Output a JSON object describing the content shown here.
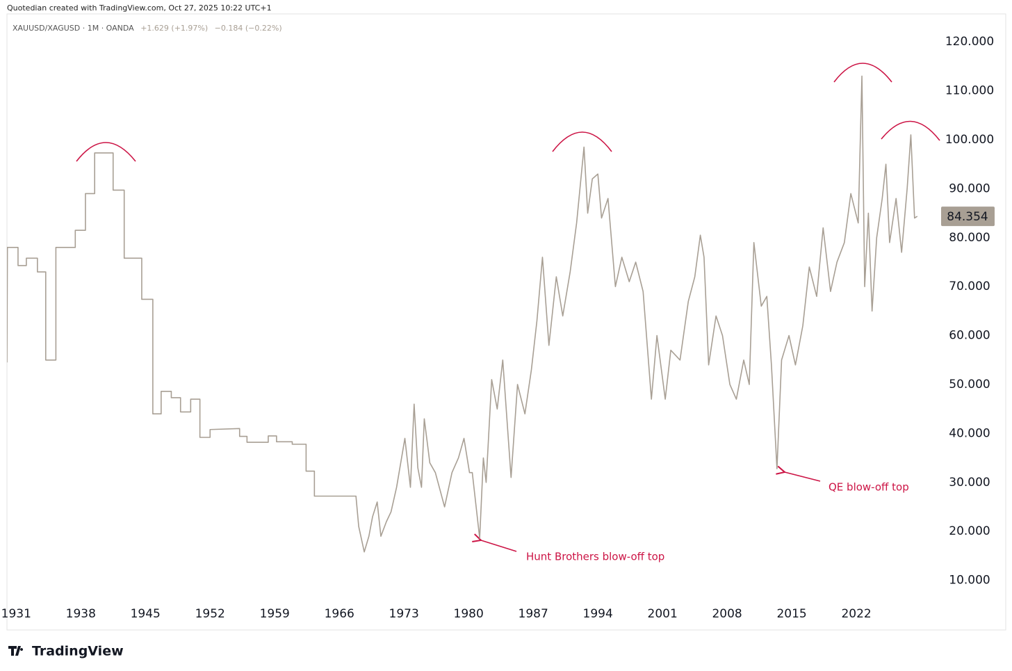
{
  "header": {
    "credit": "Quotedian created with TradingView.com, Oct 27, 2025 10:22 UTC+1",
    "symbol": "XAUUSD/XAGUSD · 1M · OANDA",
    "change": "+1.629 (+1.97%)",
    "change2": "−0.184 (−0.22%)"
  },
  "footer": {
    "logo": "TradingView"
  },
  "chart_data": {
    "type": "line",
    "annotations": [
      "Hunt Brothers blow-off top",
      "QE blow-off top"
    ],
    "xlim": [
      1930,
      2030.5
    ],
    "xticks": [
      1931,
      1938,
      1945,
      1952,
      1959,
      1966,
      1973,
      1980,
      1987,
      1994,
      2001,
      2008,
      2015,
      2022
    ],
    "ylim": [
      0,
      125.7
    ],
    "yticks": [
      {
        "value": 10,
        "label": "10.000"
      },
      {
        "value": 20,
        "label": "20.000"
      },
      {
        "value": 30,
        "label": "30.000"
      },
      {
        "value": 40,
        "label": "40.000"
      },
      {
        "value": 50,
        "label": "50.000"
      },
      {
        "value": 60,
        "label": "60.000"
      },
      {
        "value": 70,
        "label": "70.000"
      },
      {
        "value": 80,
        "label": "80.000"
      },
      {
        "value": 90,
        "label": "90.000"
      },
      {
        "value": 100,
        "label": "100.000"
      },
      {
        "value": 110,
        "label": "110.000"
      },
      {
        "value": 120,
        "label": "120.000"
      }
    ],
    "grid": false,
    "series": [
      {
        "name": "XAUUSD/XAGUSD",
        "color": "#a89f94",
        "x": [
          1930.0,
          1930.05,
          1931.2,
          1931.2,
          1932.1,
          1932.1,
          1933.3,
          1933.3,
          1934.2,
          1934.2,
          1935.3,
          1935.3,
          1937.4,
          1937.4,
          1938.5,
          1938.5,
          1939.5,
          1939.5,
          1941.5,
          1941.5,
          1942.7,
          1942.7,
          1944.6,
          1944.6,
          1945.8,
          1945.8,
          1946.7,
          1946.7,
          1947.8,
          1947.8,
          1948.8,
          1948.8,
          1949.9,
          1949.9,
          1950.9,
          1950.9,
          1952,
          1952,
          1955.2,
          1955.2,
          1956,
          1956,
          1958.3,
          1958.3,
          1959.2,
          1959.2,
          1960.9,
          1960.9,
          1962.4,
          1962.4,
          1963.3,
          1963.3,
          1967.8,
          1968.1,
          1968.7,
          1969.2,
          1969.6,
          1970.1,
          1970.5,
          1971.1,
          1971.6,
          1972.2,
          1973.1,
          1973.7,
          1974.1,
          1974.5,
          1974.9,
          1975.2,
          1975.8,
          1976.4,
          1977.4,
          1978.2,
          1978.9,
          1979.5,
          1980.1,
          1980.4,
          1981.2,
          1981.6,
          1981.9,
          1982.5,
          1983.1,
          1983.7,
          1984.6,
          1985.3,
          1986.1,
          1986.8,
          1987.4,
          1988.0,
          1988.7,
          1989.5,
          1990.2,
          1991.0,
          1991.7,
          1992.5,
          1992.9,
          1993.4,
          1994.0,
          1994.4,
          1995.1,
          1995.9,
          1996.6,
          1997.4,
          1998.1,
          1998.9,
          1999.8,
          2000.4,
          2001.3,
          2001.9,
          2002.9,
          2003.8,
          2004.5,
          2005.1,
          2005.5,
          2006.0,
          2006.8,
          2007.5,
          2008.3,
          2009.0,
          2009.8,
          2010.4,
          2010.9,
          2011.7,
          2012.3,
          2012.8,
          2013.4,
          2013.9,
          2014.7,
          2015.4,
          2016.2,
          2016.9,
          2017.7,
          2018.4,
          2019.2,
          2019.9,
          2020.7,
          2021.4,
          2022.2,
          2022.6,
          2022.9,
          2023.3,
          2023.7,
          2024.2,
          2024.8,
          2025.2,
          2025.6,
          2026.3,
          2026.9,
          2027.5,
          2027.9,
          2028.3,
          2028.6
        ],
        "values": [
          54.5,
          78,
          78,
          74.3,
          74.3,
          75.8,
          75.8,
          73,
          73,
          55,
          55,
          78,
          78,
          81.5,
          81.5,
          89,
          89,
          97.3,
          97.3,
          89.7,
          89.7,
          75.8,
          75.8,
          67.4,
          67.4,
          44,
          44,
          48.6,
          48.6,
          47.3,
          47.3,
          44.4,
          44.4,
          47,
          47,
          39.2,
          39.2,
          40.8,
          41,
          39.4,
          39.4,
          38.2,
          38.2,
          39.5,
          39.5,
          38.3,
          38.3,
          37.8,
          37.8,
          32.3,
          32.3,
          27.2,
          27.2,
          21,
          15.8,
          19,
          23,
          26,
          19,
          22,
          24,
          29,
          39,
          29,
          46,
          33,
          29,
          43,
          34,
          32,
          25,
          32,
          35,
          39,
          32,
          32,
          18.6,
          35,
          30,
          51,
          45,
          55,
          31,
          50,
          44,
          53,
          63,
          76,
          58,
          72,
          64,
          73,
          83,
          98.5,
          85,
          92,
          93,
          84,
          88,
          70,
          76,
          71,
          75,
          69,
          47,
          60,
          47,
          57,
          55,
          67,
          72,
          80.5,
          76,
          54,
          64,
          60,
          50,
          47,
          55,
          50,
          79,
          66,
          68,
          54,
          32.8,
          55,
          60,
          54,
          62,
          74,
          68,
          82,
          69,
          75,
          79,
          89,
          83,
          113,
          70,
          85,
          65,
          80,
          88,
          95,
          79,
          88,
          77,
          90,
          101,
          84,
          84.354
        ]
      }
    ]
  }
}
